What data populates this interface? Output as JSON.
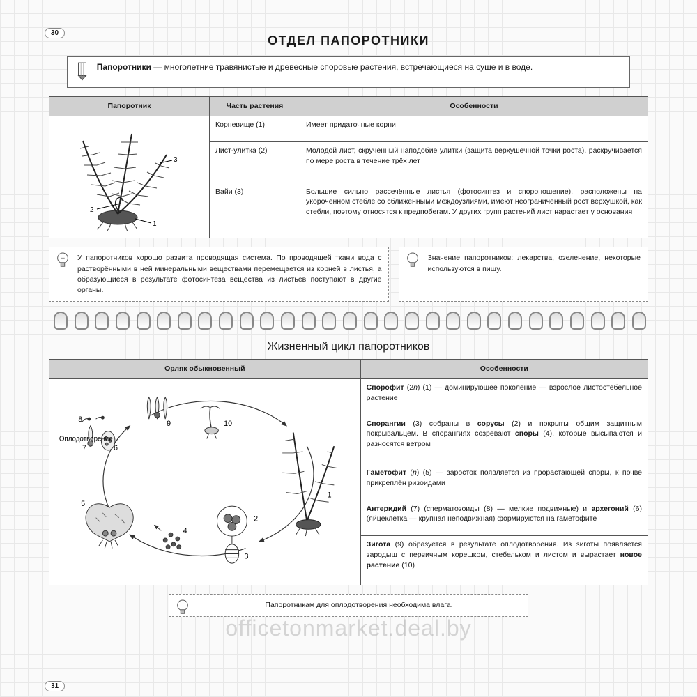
{
  "page_top": "30",
  "page_bottom": "31",
  "title": "ОТДЕЛ  ПАПОРОТНИКИ",
  "definition": {
    "term": "Папоротники",
    "text": " — многолетние травянистые и древесные споровые растения, встречающиеся на суше и в воде."
  },
  "table1": {
    "headers": [
      "Папоротник",
      "Часть растения",
      "Особенности"
    ],
    "image_labels": [
      "1",
      "2",
      "3"
    ],
    "rows": [
      {
        "part": "Корневище (1)",
        "feat": "Имеет придаточные корни"
      },
      {
        "part": "Лист-улитка (2)",
        "feat": "Молодой лист, скрученный наподобие улитки (защита верхушечной точки роста), раскручивается по мере роста в течение трёх лет"
      },
      {
        "part": "Вайи (3)",
        "feat": "Большие сильно рассечённые листья (фотосинтез и спороношение), расположены на укороченном стебле со сближенными междоузлиями, имеют неограниченный рост верхушкой, как стебли, поэтому относятся к предпобегам. У других групп растений лист нарастает у основания"
      }
    ]
  },
  "note1": "У папоротников хорошо развита проводящая система. По проводящей ткани вода с растворёнными в ней минеральными веществами перемещается из корней в листья, а образующиеся в результате фотосинтеза вещества из листьев поступают в другие органы.",
  "note2": "Значение папоротников: лекарства, озеленение, некоторые используются в пищу.",
  "subtitle": "Жизненный цикл папоротников",
  "table2": {
    "headers": [
      "Орляк обыкновенный",
      "Особенности"
    ],
    "diagram_label": "Оплодотворение",
    "rows": [
      "<b>Спорофит</b> (2<i>n</i>) (1) — доминирующее поколение — взрослое листостебельное растение",
      "<b>Спорангии</b> (3) собраны в <b>сорусы</b> (2) и покрыты общим защитным покрывальцем. В спорангиях созревают <b>споры</b> (4), которые высыпаются и разносятся ветром",
      "<b>Гаметофит</b> (<i>n</i>) (5) — заросток появляется из прорастающей споры, к почве прикреплён ризоидами",
      "<b>Антеридий</b> (7) (сперматозоиды (8) — мелкие подвижные) и <b>архегоний</b> (6) (яйцеклетка — крупная неподвижная) формируются на гаметофите",
      "<b>Зигота</b> (9) образуется в результате оплодотворения. Из зиготы появляется зародыш с первичным корешком, стебельком и листом и вырастает <b>новое растение</b> (10)"
    ]
  },
  "note3": "Папоротникам для оплодотворения необходима влага.",
  "watermark": "officetonmarket.deal.by"
}
